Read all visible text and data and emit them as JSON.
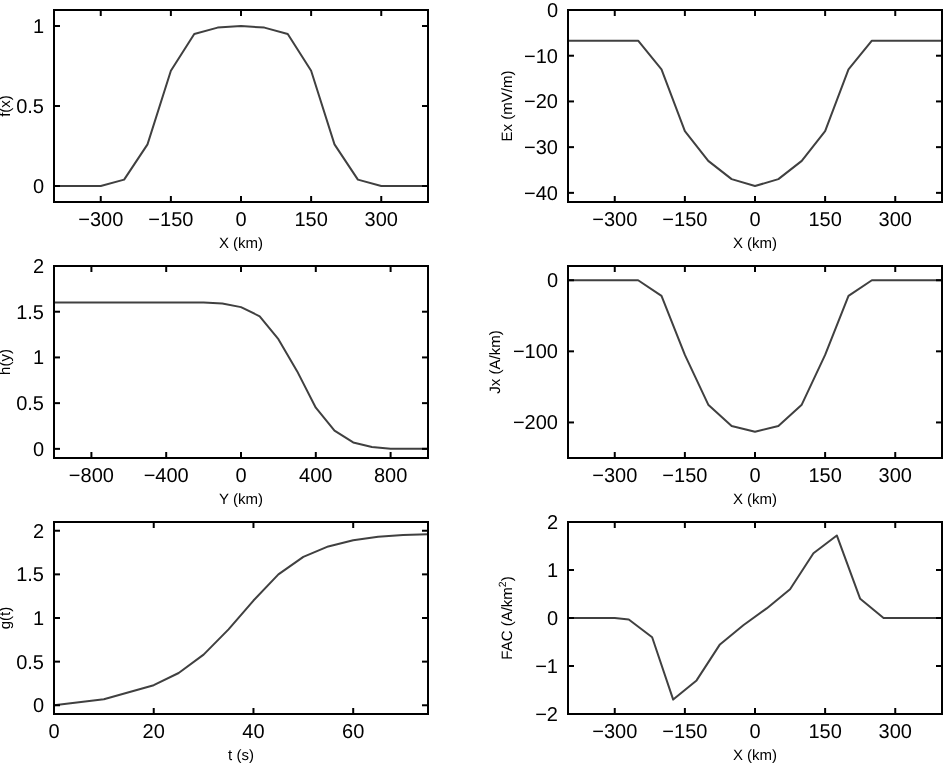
{
  "chart_data": [
    {
      "type": "line",
      "xlabel": "X (km)",
      "ylabel": "f(x)",
      "x": [
        -400,
        -300,
        -250,
        -200,
        -150,
        -100,
        -50,
        0,
        50,
        100,
        150,
        200,
        250,
        300,
        400
      ],
      "series": [
        {
          "color": "#404040",
          "values": [
            0,
            0,
            0.04,
            0.26,
            0.72,
            0.95,
            0.99,
            1,
            0.99,
            0.95,
            0.72,
            0.26,
            0.04,
            0,
            0
          ]
        }
      ],
      "xlim": [
        -400,
        400
      ],
      "xticks": [
        {
          "value": -300,
          "label": "−300"
        },
        {
          "value": -150,
          "label": "−150"
        },
        0,
        150,
        300
      ],
      "ylim": [
        -0.1,
        1.1
      ],
      "yticks": [
        0,
        0.5,
        1
      ]
    },
    {
      "type": "line",
      "xlabel": "X (km)",
      "ylabel": "Ex (mV/m)",
      "x": [
        -400,
        -250,
        -200,
        -150,
        -100,
        -50,
        0,
        50,
        100,
        150,
        200,
        250,
        400
      ],
      "series": [
        {
          "color": "#404040",
          "values": [
            -6.7,
            -6.7,
            -13,
            -26.5,
            -33,
            -37,
            -38.5,
            -37,
            -33,
            -26.5,
            -13,
            -6.7,
            -6.7
          ]
        }
      ],
      "xlim": [
        -400,
        400
      ],
      "xticks": [
        {
          "value": -300,
          "label": "−300"
        },
        {
          "value": -150,
          "label": "−150"
        },
        0,
        150,
        300
      ],
      "ylim": [
        -42,
        0
      ],
      "yticks": [
        {
          "value": -40,
          "label": "−40"
        },
        {
          "value": -30,
          "label": "−30"
        },
        {
          "value": -20,
          "label": "−20"
        },
        {
          "value": -10,
          "label": "−10"
        },
        0
      ]
    },
    {
      "type": "line",
      "xlabel": "Y (km)",
      "ylabel": "h(y)",
      "x": [
        -1000,
        -200,
        -100,
        0,
        100,
        200,
        300,
        400,
        500,
        600,
        700,
        800,
        1000
      ],
      "series": [
        {
          "color": "#404040",
          "values": [
            1.6,
            1.6,
            1.59,
            1.55,
            1.45,
            1.2,
            0.85,
            0.45,
            0.2,
            0.07,
            0.02,
            0,
            0
          ]
        }
      ],
      "xlim": [
        -1000,
        1000
      ],
      "xticks": [
        {
          "value": -800,
          "label": "−800"
        },
        {
          "value": -400,
          "label": "−400"
        },
        0,
        400,
        800
      ],
      "ylim": [
        -0.1,
        2
      ],
      "yticks": [
        0,
        0.5,
        1,
        1.5,
        2
      ]
    },
    {
      "type": "line",
      "xlabel": "X (km)",
      "ylabel": "Jx (A/km)",
      "x": [
        -400,
        -250,
        -200,
        -150,
        -100,
        -50,
        0,
        50,
        100,
        150,
        200,
        250,
        400
      ],
      "series": [
        {
          "color": "#404040",
          "values": [
            0,
            0,
            -22,
            -105,
            -175,
            -205,
            -213,
            -205,
            -175,
            -105,
            -22,
            0,
            0
          ]
        }
      ],
      "xlim": [
        -400,
        400
      ],
      "xticks": [
        {
          "value": -300,
          "label": "−300"
        },
        {
          "value": -150,
          "label": "−150"
        },
        0,
        150,
        300
      ],
      "ylim": [
        -250,
        20
      ],
      "yticks": [
        {
          "value": -200,
          "label": "−200"
        },
        {
          "value": -100,
          "label": "−100"
        },
        0
      ]
    },
    {
      "type": "line",
      "xlabel": "t (s)",
      "ylabel": "g(t)",
      "x": [
        0,
        10,
        20,
        25,
        30,
        35,
        40,
        45,
        50,
        55,
        60,
        65,
        70,
        75
      ],
      "series": [
        {
          "color": "#404040",
          "values": [
            0,
            0.07,
            0.23,
            0.37,
            0.58,
            0.87,
            1.2,
            1.5,
            1.7,
            1.82,
            1.89,
            1.93,
            1.95,
            1.96
          ]
        }
      ],
      "xlim": [
        0,
        75
      ],
      "xticks": [
        0,
        20,
        40,
        60
      ],
      "ylim": [
        -0.1,
        2.1
      ],
      "yticks": [
        0,
        0.5,
        1,
        1.5,
        2
      ]
    },
    {
      "type": "line",
      "xlabel": "X (km)",
      "ylabel": "FAC (A/km$^{2}$)",
      "x": [
        -400,
        -300,
        -270,
        -220,
        -175,
        -125,
        -75,
        -25,
        25,
        75,
        125,
        175,
        225,
        275,
        400
      ],
      "series": [
        {
          "color": "#404040",
          "values": [
            0,
            0,
            -0.03,
            -0.4,
            -1.7,
            -1.3,
            -0.55,
            -0.15,
            0.2,
            0.6,
            1.35,
            1.72,
            0.4,
            0,
            0
          ]
        }
      ],
      "xlim": [
        -400,
        400
      ],
      "xticks": [
        {
          "value": -300,
          "label": "−300"
        },
        {
          "value": -150,
          "label": "−150"
        },
        0,
        150,
        300
      ],
      "ylim": [
        -2,
        2
      ],
      "yticks": [
        {
          "value": -2,
          "label": "−2"
        },
        {
          "value": -1,
          "label": "−1"
        },
        0,
        1,
        2
      ]
    }
  ]
}
